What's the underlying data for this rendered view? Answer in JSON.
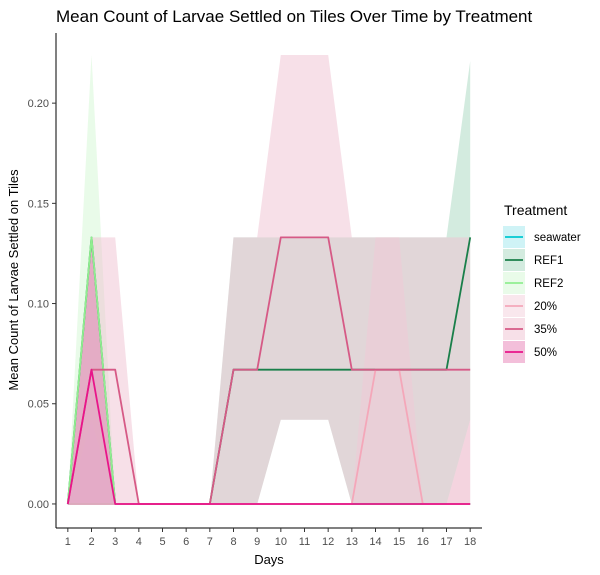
{
  "chart_data": {
    "type": "line",
    "title": "Mean Count of Larvae Settled on Tiles Over Time by Treatment",
    "xlabel": "Days",
    "ylabel": "Mean Count of Larvae Settled on Tiles",
    "x": [
      1,
      2,
      3,
      4,
      5,
      6,
      7,
      8,
      9,
      10,
      11,
      12,
      13,
      14,
      15,
      16,
      17,
      18
    ],
    "x_ticks": [
      "1",
      "2",
      "3",
      "4",
      "5",
      "6",
      "7",
      "8",
      "9",
      "10",
      "11",
      "12",
      "13",
      "14",
      "15",
      "16",
      "17",
      "18"
    ],
    "y_ticks": [
      "0.00",
      "0.05",
      "0.10",
      "0.15",
      "0.20"
    ],
    "xlim": [
      0.5,
      18.5
    ],
    "ylim": [
      -0.012,
      0.235
    ],
    "grid": false,
    "legend_title": "Treatment",
    "legend_position": "right",
    "series": [
      {
        "name": "seawater",
        "color": "#00c8d2",
        "values": [
          0,
          0,
          0,
          0,
          0,
          0,
          0,
          0,
          0,
          0,
          0,
          0,
          0,
          0,
          0,
          0,
          0,
          0
        ],
        "ribbon_upper": [
          0,
          0,
          0,
          0,
          0,
          0,
          0,
          0,
          0,
          0,
          0,
          0,
          0,
          0,
          0,
          0,
          0,
          0
        ],
        "ribbon_lower": [
          0,
          0,
          0,
          0,
          0,
          0,
          0,
          0,
          0,
          0,
          0,
          0,
          0,
          0,
          0,
          0,
          0,
          0
        ],
        "fill": "#9fe8ee"
      },
      {
        "name": "REF1",
        "color": "#1a7f4a",
        "values": [
          0,
          0.133,
          0,
          0,
          0,
          0,
          0,
          0.067,
          0.067,
          0.067,
          0.067,
          0.067,
          0.067,
          0.067,
          0.067,
          0.067,
          0.067,
          0.133
        ],
        "ribbon_upper": [
          0,
          0.133,
          0,
          0,
          0,
          0,
          0,
          0.133,
          0.133,
          0.133,
          0.133,
          0.133,
          0.133,
          0.133,
          0.133,
          0.133,
          0.133,
          0.221
        ],
        "ribbon_lower": [
          0,
          0,
          0,
          0,
          0,
          0,
          0,
          0,
          0,
          0.042,
          0.042,
          0.042,
          0,
          0,
          0,
          0,
          0,
          0.042
        ],
        "fill": "#a8d8c0"
      },
      {
        "name": "REF2",
        "color": "#90ee90",
        "values": [
          0,
          0.133,
          0,
          0,
          0,
          0,
          0,
          0,
          0,
          0,
          0,
          0,
          0,
          0,
          0,
          0,
          0,
          0
        ],
        "ribbon_upper": [
          0,
          0.224,
          0,
          0,
          0,
          0,
          0,
          0,
          0,
          0,
          0,
          0,
          0,
          0,
          0,
          0,
          0,
          0
        ],
        "ribbon_lower": [
          0,
          0.042,
          0,
          0,
          0,
          0,
          0,
          0,
          0,
          0,
          0,
          0,
          0,
          0,
          0,
          0,
          0,
          0
        ],
        "fill": "#d4f7d4"
      },
      {
        "name": "20%",
        "color": "#f4a7b9",
        "values": [
          0,
          0,
          0,
          0,
          0,
          0,
          0,
          0,
          0,
          0,
          0,
          0,
          0,
          0.067,
          0.067,
          0,
          0,
          0
        ],
        "ribbon_upper": [
          0,
          0,
          0,
          0,
          0,
          0,
          0,
          0,
          0,
          0,
          0,
          0,
          0,
          0.133,
          0.133,
          0,
          0,
          0.042
        ],
        "ribbon_lower": [
          0,
          0,
          0,
          0,
          0,
          0,
          0,
          0,
          0,
          0,
          0,
          0,
          0,
          0,
          0,
          0,
          0,
          0
        ],
        "fill": "#f3cfdc"
      },
      {
        "name": "35%",
        "color": "#d65a86",
        "values": [
          0,
          0.067,
          0.067,
          0,
          0,
          0,
          0,
          0.067,
          0.067,
          0.133,
          0.133,
          0.133,
          0.067,
          0.067,
          0.067,
          0.067,
          0.067,
          0.067
        ],
        "ribbon_upper": [
          0,
          0.133,
          0.133,
          0,
          0,
          0,
          0,
          0.133,
          0.133,
          0.224,
          0.224,
          0.224,
          0.133,
          0.133,
          0.133,
          0.133,
          0.133,
          0.133
        ],
        "ribbon_lower": [
          0,
          0,
          0,
          0,
          0,
          0,
          0,
          0,
          0,
          0.042,
          0.042,
          0.042,
          0,
          0,
          0,
          0,
          0,
          0
        ],
        "fill": "#f0c2d2"
      },
      {
        "name": "50%",
        "color": "#e8158a",
        "values": [
          0,
          0.067,
          0,
          0,
          0,
          0,
          0,
          0,
          0,
          0,
          0,
          0,
          0,
          0,
          0,
          0,
          0,
          0
        ],
        "ribbon_upper": [
          0,
          0.133,
          0,
          0,
          0,
          0,
          0,
          0,
          0,
          0,
          0,
          0,
          0,
          0,
          0,
          0,
          0,
          0
        ],
        "ribbon_lower": [
          0,
          0,
          0,
          0,
          0,
          0,
          0,
          0,
          0,
          0,
          0,
          0,
          0,
          0,
          0,
          0,
          0,
          0
        ],
        "fill": "#e77fb6"
      }
    ]
  }
}
